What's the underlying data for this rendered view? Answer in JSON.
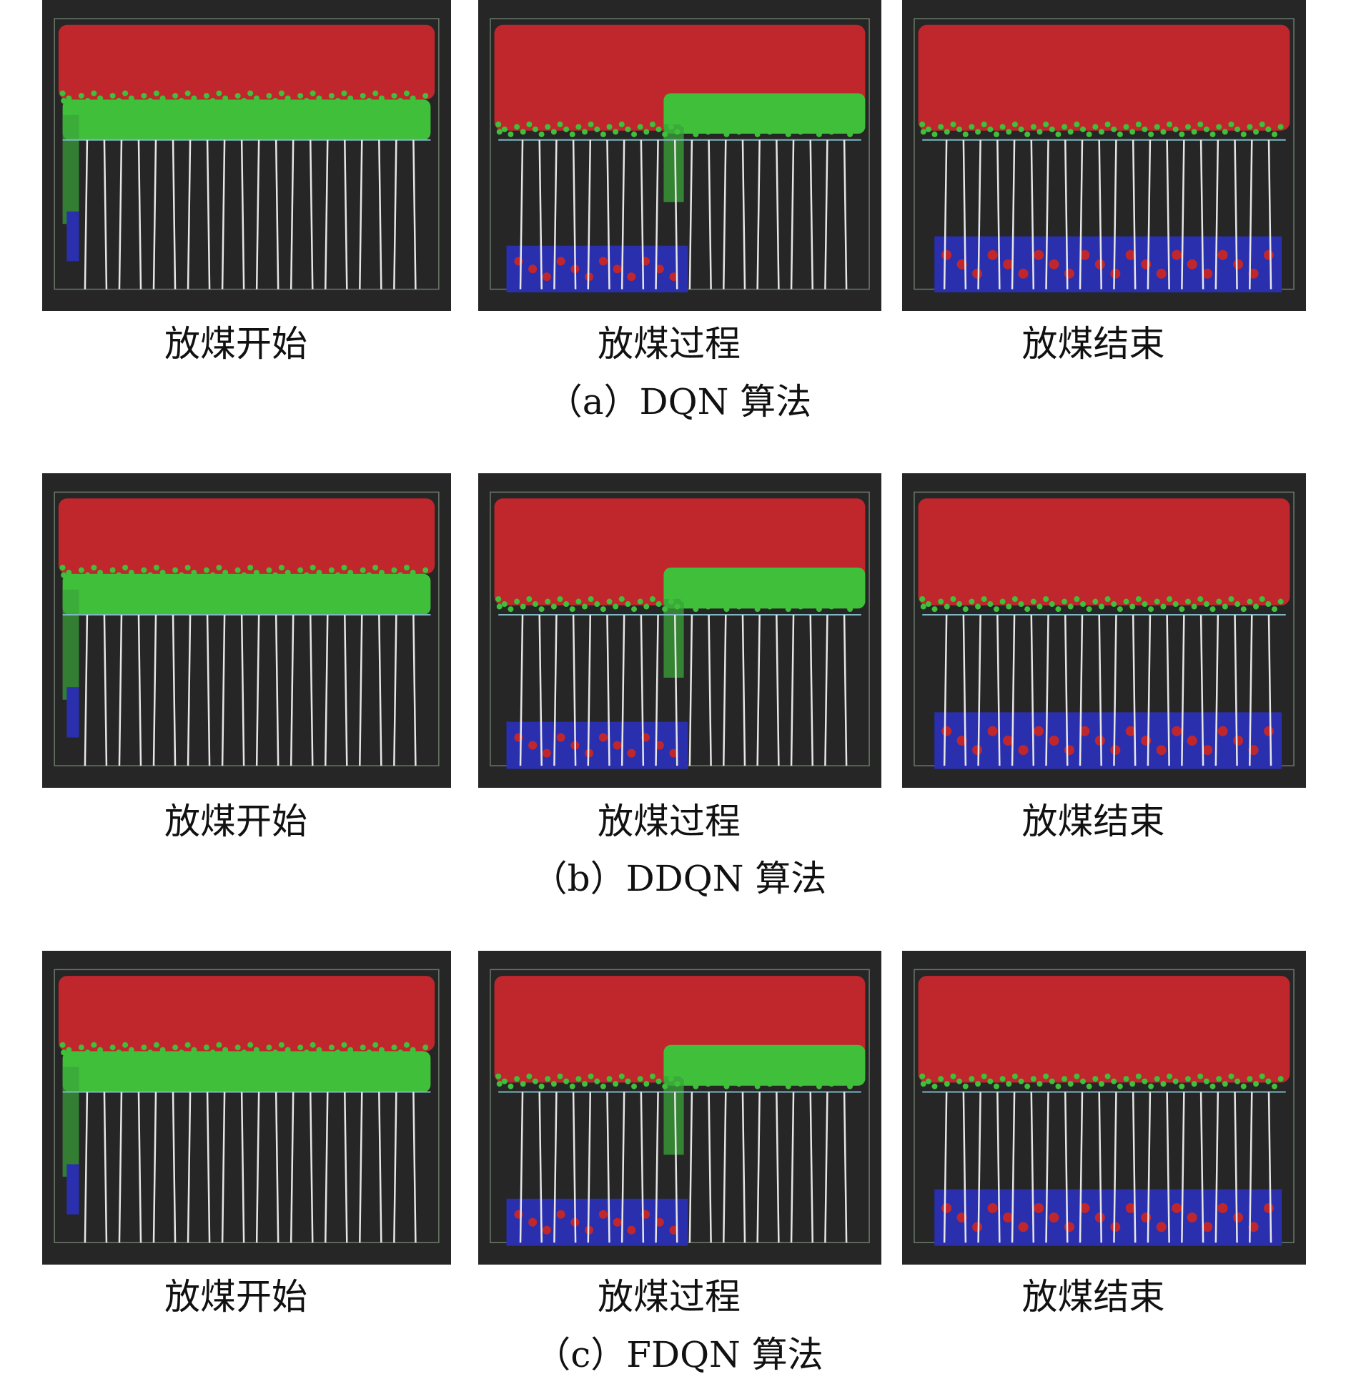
{
  "rows": [
    {
      "caption": "（a）DQN 算法",
      "panels": [
        {
          "label": "放煤开始"
        },
        {
          "label": "放煤过程"
        },
        {
          "label": "放煤结束"
        }
      ]
    },
    {
      "caption": "（b）DDQN 算法",
      "panels": [
        {
          "label": "放煤开始"
        },
        {
          "label": "放煤过程"
        },
        {
          "label": "放煤结束"
        }
      ]
    },
    {
      "caption": "（c）FDQN 算法",
      "panels": [
        {
          "label": "放煤开始"
        },
        {
          "label": "放煤过程"
        },
        {
          "label": "放煤结束"
        }
      ]
    }
  ]
}
